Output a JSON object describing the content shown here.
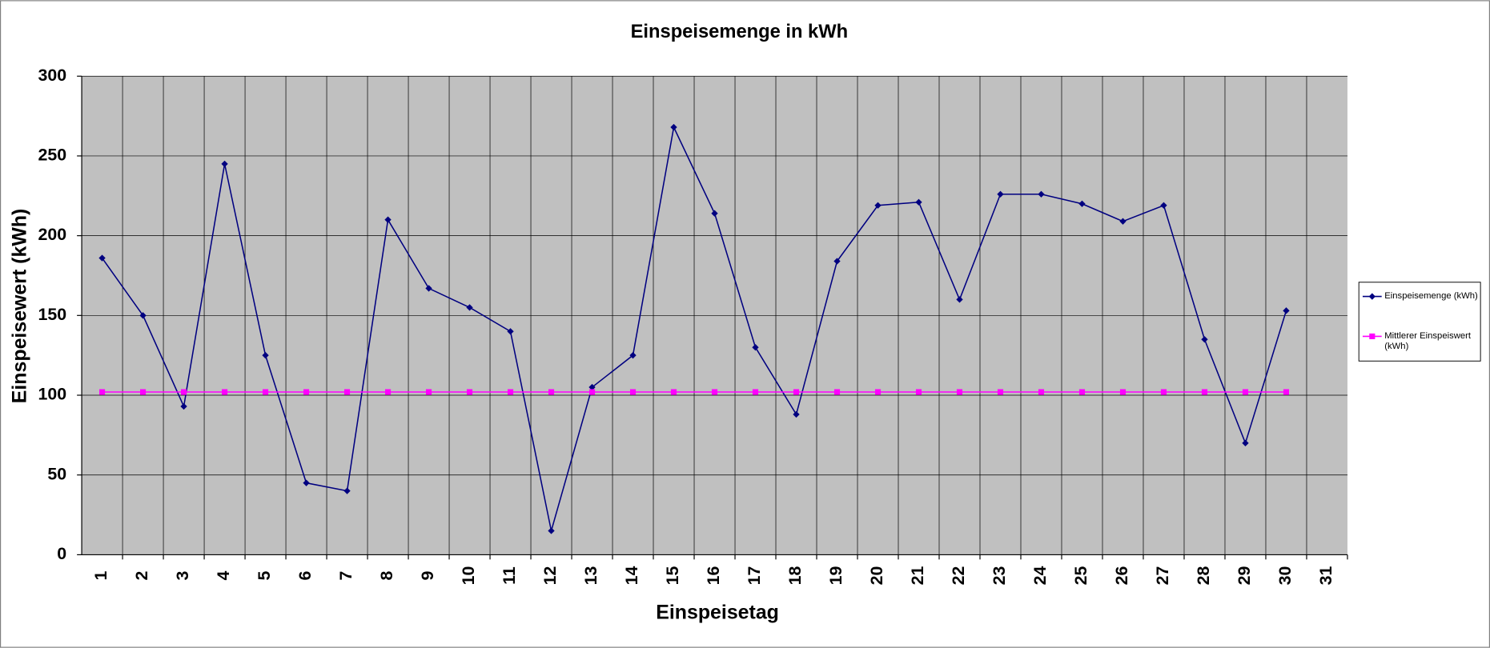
{
  "chart_data": {
    "type": "line",
    "title": "Einspeisemenge in kWh",
    "x_label": "Einspeisetag",
    "y_label": "Einspeisewert  (kWh)",
    "categories": [
      "1",
      "2",
      "3",
      "4",
      "5",
      "6",
      "7",
      "8",
      "9",
      "10",
      "11",
      "12",
      "13",
      "14",
      "15",
      "16",
      "17",
      "18",
      "19",
      "20",
      "21",
      "22",
      "23",
      "24",
      "25",
      "26",
      "27",
      "28",
      "29",
      "30",
      "31"
    ],
    "series": [
      {
        "name": "Einspeisemenge (kWh)",
        "color": "#000080",
        "marker": "diamond",
        "values": [
          186,
          150,
          93,
          245,
          125,
          45,
          40,
          210,
          167,
          155,
          140,
          15,
          105,
          125,
          268,
          214,
          130,
          88,
          184,
          219,
          221,
          160,
          226,
          226,
          220,
          209,
          219,
          135,
          70,
          153,
          null
        ]
      },
      {
        "name": "Mittlerer Einspeiswert (kWh)",
        "color": "#ff00ff",
        "marker": "square",
        "values": [
          102,
          102,
          102,
          102,
          102,
          102,
          102,
          102,
          102,
          102,
          102,
          102,
          102,
          102,
          102,
          102,
          102,
          102,
          102,
          102,
          102,
          102,
          102,
          102,
          102,
          102,
          102,
          102,
          102,
          102,
          null
        ]
      }
    ],
    "ylim": [
      0,
      300
    ],
    "yticks": [
      0,
      50,
      100,
      150,
      200,
      250,
      300
    ],
    "grid": true,
    "legend": "right"
  }
}
